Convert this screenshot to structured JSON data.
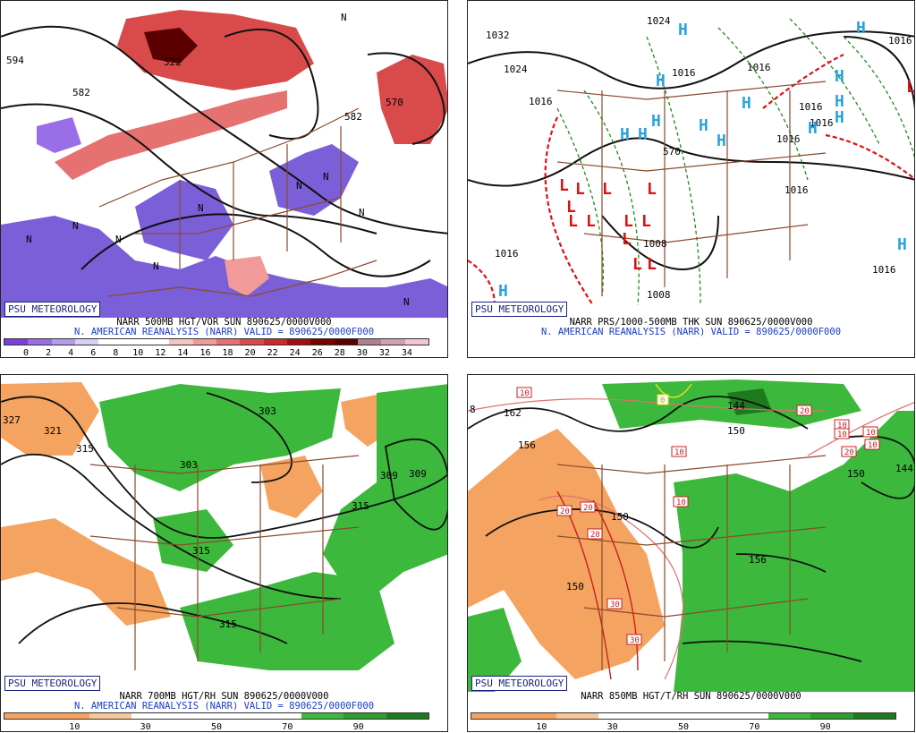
{
  "panels": {
    "p1": {
      "brand": "PSU METEOROLOGY",
      "title": "NARR 500MB HGT/VOR SUN 890625/0000V000",
      "subtitle": "N. AMERICAN REANALYSIS (NARR) VALID = 890625/0000F000",
      "scale_ticks": [
        "0",
        "2",
        "4",
        "6",
        "8",
        "10",
        "12",
        "14",
        "16",
        "18",
        "20",
        "22",
        "24",
        "26",
        "28",
        "30",
        "32",
        "34"
      ],
      "scale_colors": [
        "#7b3fe0",
        "#9a6ee6",
        "#b59bee",
        "#d8cff6",
        "#ffffff",
        "#ffffff",
        "#ffffff",
        "#f7c4c4",
        "#f09a9a",
        "#e57171",
        "#d94a4a",
        "#c92a2a",
        "#a30f0f",
        "#7a0000",
        "#5a0000",
        "#b08090",
        "#d4a0b0",
        "#f0c8d4"
      ],
      "contour_labels": [
        "594",
        "582",
        "582",
        "570",
        "522",
        "N",
        "N",
        "N",
        "N",
        "N",
        "N",
        "N",
        "N",
        "N",
        "N"
      ]
    },
    "p2": {
      "brand": "PSU METEOROLOGY",
      "title": "NARR PRS/1000-500MB THK SUN 890625/0000V000",
      "subtitle": "N. AMERICAN REANALYSIS (NARR) VALID = 890625/0000F000",
      "contour_labels": [
        "1032",
        "1024",
        "1024",
        "1016",
        "1016",
        "1016",
        "1016",
        "1016",
        "1016",
        "1016",
        "1008",
        "1008",
        "570",
        "1016",
        "1016",
        "1016"
      ],
      "highs": [
        "H",
        "H",
        "H",
        "H",
        "H",
        "H",
        "H",
        "H",
        "H",
        "H",
        "H",
        "H",
        "H",
        "H"
      ],
      "lows": [
        "L",
        "L",
        "L",
        "L",
        "L",
        "L",
        "L",
        "L",
        "L",
        "L",
        "L",
        "L",
        "L"
      ]
    },
    "p3": {
      "brand": "PSU METEOROLOGY",
      "title": "NARR 700MB HGT/RH SUN 890625/0000V000",
      "subtitle": "N. AMERICAN REANALYSIS (NARR) VALID = 890625/0000F000",
      "scale_ticks": [
        "10",
        "30",
        "50",
        "70",
        "90"
      ],
      "scale_colors": [
        "#f4a460",
        "#f4a460",
        "#f8c898",
        "#ffffff",
        "#ffffff",
        "#ffffff",
        "#ffffff",
        "#3cb83c",
        "#2e9e2e",
        "#1e7a1e"
      ],
      "contour_labels": [
        "327",
        "321",
        "315",
        "303",
        "309",
        "309",
        "303",
        "315",
        "315",
        "315"
      ]
    },
    "p4": {
      "brand": "PSU METEOROLOGY",
      "title": "NARR 850MB HGT/T/RH SUN 890625/0000V000",
      "subtitle": "",
      "scale_ticks": [
        "10",
        "30",
        "50",
        "70",
        "90"
      ],
      "scale_colors": [
        "#f4a460",
        "#f4a460",
        "#f8c898",
        "#ffffff",
        "#ffffff",
        "#ffffff",
        "#ffffff",
        "#3cb83c",
        "#2e9e2e",
        "#1e7a1e"
      ],
      "contour_labels": [
        "162",
        "156",
        "150",
        "150",
        "144",
        "150",
        "156",
        "150",
        "144",
        "8"
      ],
      "temp_boxes": [
        "10",
        "10",
        "10",
        "10",
        "20",
        "20",
        "20",
        "20",
        "30",
        "30",
        "10",
        "0",
        "20",
        "10",
        "10"
      ]
    }
  },
  "colors": {
    "vort_pos": "#d94a4a",
    "vort_strong": "#7a0000",
    "vort_neg": "#7b5fd8",
    "rh_moist": "#3cb83c",
    "rh_dry": "#f4a460",
    "state_lines": "#8b4a2b",
    "high_color": "#29a3e0",
    "low_color": "#e01010",
    "thk_color": "#1e8a1e",
    "brand_color": "#1a237e",
    "subtitle_color": "#1a3cc8"
  }
}
